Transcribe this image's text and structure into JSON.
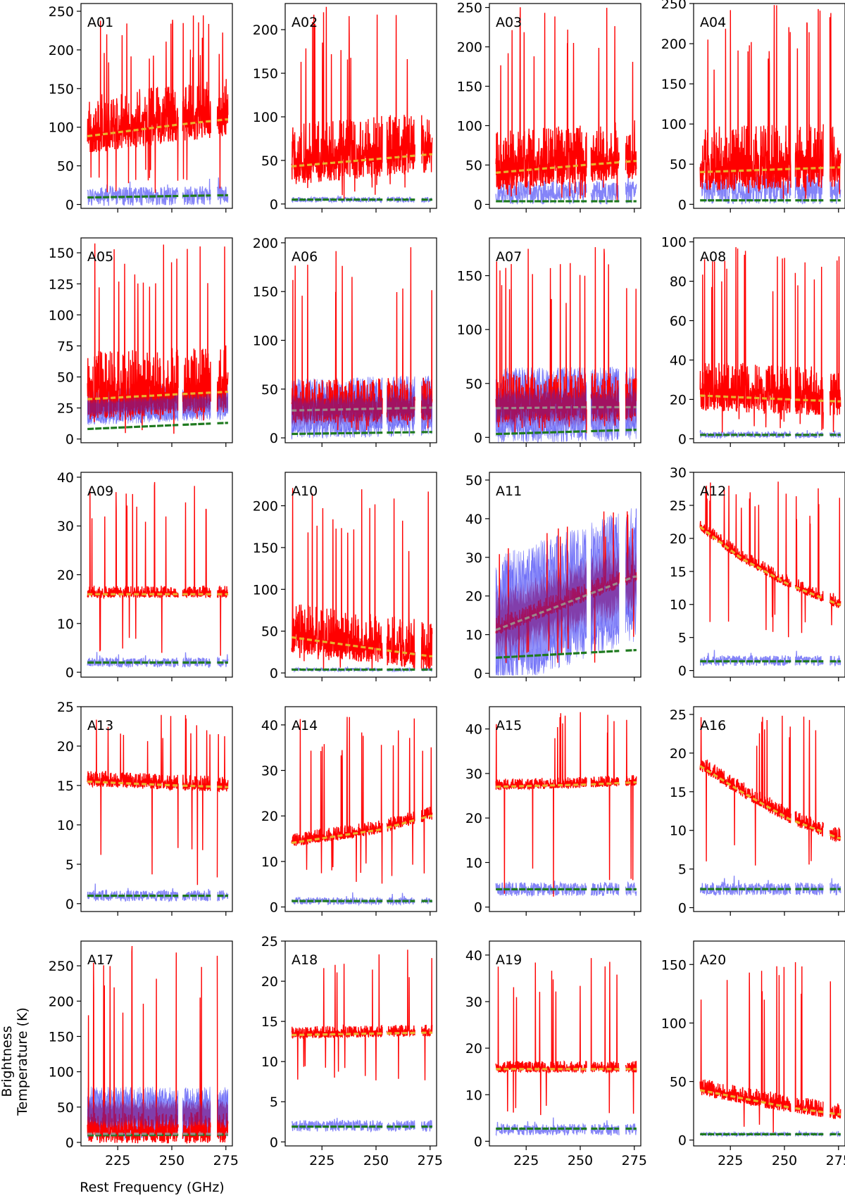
{
  "figure": {
    "ylabel_line1": "Brightness",
    "ylabel_line2": "Temperature (K)",
    "xlabel": "Rest Frequency (GHz)"
  },
  "colors": {
    "observed": "#ff0000",
    "observed_secondary": "#6f6ff7",
    "model_primary": "#e9b22e",
    "model_secondary": "#1f7a1f",
    "overlap": "#7a1a8a",
    "model_grey": "#9a8a8a"
  },
  "chart_data": [
    {
      "type": "line",
      "panel": "A01",
      "xlim": [
        208,
        278
      ],
      "ylim": [
        -5,
        260
      ],
      "xticks": [
        225,
        250,
        275
      ],
      "yticks": [
        0,
        50,
        100,
        150,
        200,
        250
      ],
      "base": [
        [
          210,
          88
        ],
        [
          252,
          103
        ],
        [
          275,
          110
        ]
      ],
      "noise": 75,
      "peak": 245,
      "floor": 10,
      "sec": [
        [
          210,
          10
        ],
        [
          275,
          12
        ]
      ],
      "secNoise": 12,
      "grn": [
        [
          210,
          9
        ],
        [
          275,
          12
        ]
      ],
      "dashGrey": false,
      "secFill": false
    },
    {
      "type": "line",
      "panel": "A02",
      "xlim": [
        208,
        278
      ],
      "ylim": [
        -5,
        230
      ],
      "xticks": [
        225,
        250,
        275
      ],
      "yticks": [
        0,
        50,
        100,
        150,
        200
      ],
      "base": [
        [
          210,
          43
        ],
        [
          252,
          52
        ],
        [
          275,
          57
        ]
      ],
      "noise": 70,
      "peak": 228,
      "floor": 5,
      "sec": [
        [
          210,
          5
        ],
        [
          275,
          5
        ]
      ],
      "secNoise": 3,
      "grn": [
        [
          210,
          5
        ],
        [
          275,
          5
        ]
      ],
      "dashGrey": false,
      "secFill": false
    },
    {
      "type": "line",
      "panel": "A03",
      "xlim": [
        208,
        278
      ],
      "ylim": [
        -5,
        255
      ],
      "xticks": [
        225,
        250,
        275
      ],
      "yticks": [
        0,
        50,
        100,
        150,
        200,
        250
      ],
      "base": [
        [
          210,
          40
        ],
        [
          252,
          50
        ],
        [
          275,
          55
        ]
      ],
      "noise": 75,
      "peak": 255,
      "floor": 3,
      "sec": [
        [
          210,
          15
        ],
        [
          275,
          15
        ]
      ],
      "secNoise": 15,
      "grn": [
        [
          210,
          4
        ],
        [
          275,
          4
        ]
      ],
      "dashGrey": false,
      "secFill": false
    },
    {
      "type": "line",
      "panel": "A04",
      "xlim": [
        208,
        278
      ],
      "ylim": [
        -5,
        250
      ],
      "xticks": [
        225,
        250,
        275
      ],
      "yticks": [
        0,
        50,
        100,
        150,
        200,
        250
      ],
      "base": [
        [
          210,
          40
        ],
        [
          252,
          44
        ],
        [
          275,
          46
        ]
      ],
      "noise": 80,
      "peak": 250,
      "floor": 5,
      "sec": [
        [
          210,
          20
        ],
        [
          275,
          20
        ]
      ],
      "secNoise": 20,
      "grn": [
        [
          210,
          5
        ],
        [
          275,
          5
        ]
      ],
      "dashGrey": false,
      "secFill": false
    },
    {
      "type": "line",
      "panel": "A05",
      "xlim": [
        208,
        278
      ],
      "ylim": [
        -3,
        162
      ],
      "xticks": [
        225,
        250,
        275
      ],
      "yticks": [
        0,
        25,
        50,
        75,
        100,
        125,
        150
      ],
      "base": [
        [
          210,
          32
        ],
        [
          252,
          36
        ],
        [
          275,
          38
        ]
      ],
      "noise": 55,
      "peak": 160,
      "floor": 4,
      "sec": [
        [
          210,
          25
        ],
        [
          275,
          30
        ]
      ],
      "secNoise": 12,
      "grn": [
        [
          210,
          8
        ],
        [
          275,
          13
        ]
      ],
      "dashGrey": false,
      "secFill": true
    },
    {
      "type": "line",
      "panel": "A06",
      "xlim": [
        208,
        278
      ],
      "ylim": [
        -5,
        205
      ],
      "xticks": [
        225,
        250,
        275
      ],
      "yticks": [
        0,
        50,
        100,
        150,
        200
      ],
      "base": [
        [
          210,
          28
        ],
        [
          252,
          30
        ],
        [
          275,
          31
        ]
      ],
      "noise": 45,
      "peak": 200,
      "floor": 3,
      "sec": [
        [
          210,
          28
        ],
        [
          275,
          32
        ]
      ],
      "secNoise": 25,
      "grn": [
        [
          210,
          4
        ],
        [
          275,
          6
        ]
      ],
      "dashGrey": true,
      "secFill": true
    },
    {
      "type": "line",
      "panel": "A07",
      "xlim": [
        208,
        278
      ],
      "ylim": [
        -5,
        185
      ],
      "xticks": [
        225,
        250,
        275
      ],
      "yticks": [
        0,
        50,
        100,
        150
      ],
      "base": [
        [
          210,
          27
        ],
        [
          252,
          28
        ],
        [
          275,
          28
        ]
      ],
      "noise": 45,
      "peak": 180,
      "floor": 2,
      "sec": [
        [
          210,
          28
        ],
        [
          275,
          30
        ]
      ],
      "secNoise": 28,
      "grn": [
        [
          210,
          3
        ],
        [
          275,
          7
        ]
      ],
      "dashGrey": true,
      "secFill": true
    },
    {
      "type": "line",
      "panel": "A08",
      "xlim": [
        208,
        278
      ],
      "ylim": [
        -2,
        102
      ],
      "xticks": [
        225,
        250,
        275
      ],
      "yticks": [
        0,
        20,
        40,
        60,
        80,
        100
      ],
      "base": [
        [
          210,
          22
        ],
        [
          252,
          20
        ],
        [
          275,
          19
        ]
      ],
      "noise": 25,
      "peak": 100,
      "floor": 3,
      "sec": [
        [
          210,
          2
        ],
        [
          275,
          2
        ]
      ],
      "secNoise": 1.5,
      "grn": [
        [
          210,
          2
        ],
        [
          275,
          2
        ]
      ],
      "dashGrey": false,
      "secFill": false
    },
    {
      "type": "line",
      "panel": "A09",
      "xlim": [
        208,
        278
      ],
      "ylim": [
        -1,
        41
      ],
      "xticks": [
        225,
        250,
        275
      ],
      "yticks": [
        0,
        10,
        20,
        30,
        40
      ],
      "base": [
        [
          210,
          16
        ],
        [
          252,
          16
        ],
        [
          275,
          16
        ]
      ],
      "noise": 2.5,
      "peak": 39,
      "floor": 3,
      "sec": [
        [
          210,
          2
        ],
        [
          275,
          2
        ]
      ],
      "secNoise": 1,
      "grn": [
        [
          210,
          2
        ],
        [
          275,
          2
        ]
      ],
      "dashGrey": false,
      "secFill": false
    },
    {
      "type": "line",
      "panel": "A10",
      "xlim": [
        208,
        278
      ],
      "ylim": [
        -5,
        240
      ],
      "xticks": [
        225,
        250,
        275
      ],
      "yticks": [
        0,
        50,
        100,
        150,
        200
      ],
      "base": [
        [
          210,
          43
        ],
        [
          252,
          28
        ],
        [
          275,
          20
        ]
      ],
      "noise": 60,
      "peak": 225,
      "floor": 3,
      "sec": [
        [
          210,
          4
        ],
        [
          275,
          4
        ]
      ],
      "secNoise": 2,
      "grn": [
        [
          210,
          4
        ],
        [
          275,
          4
        ]
      ],
      "dashGrey": false,
      "secFill": false
    },
    {
      "type": "line",
      "panel": "A11",
      "xlim": [
        208,
        278
      ],
      "ylim": [
        -1,
        52
      ],
      "xticks": [
        225,
        250,
        275
      ],
      "yticks": [
        0,
        10,
        20,
        30,
        40,
        50
      ],
      "base": [
        [
          210,
          11
        ],
        [
          252,
          20
        ],
        [
          275,
          25
        ]
      ],
      "noise": 5,
      "peak": 42,
      "floor": 0,
      "sec": [
        [
          210,
          12
        ],
        [
          275,
          25
        ]
      ],
      "secNoise": 14,
      "grn": [
        [
          210,
          4
        ],
        [
          275,
          6
        ]
      ],
      "dashGrey": true,
      "secFill": true
    },
    {
      "type": "line",
      "panel": "A12",
      "xlim": [
        208,
        278
      ],
      "ylim": [
        -1,
        30
      ],
      "xticks": [
        225,
        250,
        275
      ],
      "yticks": [
        0,
        5,
        10,
        15,
        20,
        25,
        30
      ],
      "base": [
        [
          210,
          22
        ],
        [
          230,
          17
        ],
        [
          252,
          13
        ],
        [
          275,
          10
        ]
      ],
      "noise": 2,
      "peak": 29,
      "floor": 5,
      "sec": [
        [
          210,
          1.5
        ],
        [
          275,
          1.5
        ]
      ],
      "secNoise": 0.8,
      "grn": [
        [
          210,
          1.4
        ],
        [
          275,
          1.4
        ]
      ],
      "dashGrey": false,
      "secFill": false
    },
    {
      "type": "line",
      "panel": "A13",
      "xlim": [
        208,
        278
      ],
      "ylim": [
        -1,
        25
      ],
      "xticks": [
        225,
        250,
        275
      ],
      "yticks": [
        0,
        5,
        10,
        15,
        20,
        25
      ],
      "base": [
        [
          210,
          15.5
        ],
        [
          252,
          15
        ],
        [
          275,
          14.8
        ]
      ],
      "noise": 2,
      "peak": 24,
      "floor": 2,
      "sec": [
        [
          210,
          1
        ],
        [
          275,
          1
        ]
      ],
      "secNoise": 0.7,
      "grn": [
        [
          210,
          1
        ],
        [
          275,
          1
        ]
      ],
      "dashGrey": false,
      "secFill": false
    },
    {
      "type": "line",
      "panel": "A14",
      "xlim": [
        208,
        278
      ],
      "ylim": [
        -1,
        44
      ],
      "xticks": [
        225,
        250,
        275
      ],
      "yticks": [
        0,
        10,
        20,
        30,
        40
      ],
      "base": [
        [
          210,
          14
        ],
        [
          252,
          17
        ],
        [
          275,
          20
        ]
      ],
      "noise": 3,
      "peak": 42,
      "floor": 5,
      "sec": [
        [
          210,
          1.3
        ],
        [
          275,
          1.3
        ]
      ],
      "secNoise": 0.8,
      "grn": [
        [
          210,
          1.3
        ],
        [
          275,
          1.3
        ]
      ],
      "dashGrey": false,
      "secFill": false
    },
    {
      "type": "line",
      "panel": "A15",
      "xlim": [
        208,
        278
      ],
      "ylim": [
        -1,
        45
      ],
      "xticks": [
        225,
        250,
        275
      ],
      "yticks": [
        0,
        10,
        20,
        30,
        40
      ],
      "base": [
        [
          210,
          27
        ],
        [
          252,
          27.5
        ],
        [
          275,
          28
        ]
      ],
      "noise": 2.5,
      "peak": 44,
      "floor": 1,
      "sec": [
        [
          210,
          4
        ],
        [
          275,
          4
        ]
      ],
      "secNoise": 1.5,
      "grn": [
        [
          210,
          4
        ],
        [
          275,
          4
        ]
      ],
      "dashGrey": false,
      "secFill": false
    },
    {
      "type": "line",
      "panel": "A16",
      "xlim": [
        208,
        278
      ],
      "ylim": [
        -0.5,
        26
      ],
      "xticks": [
        225,
        250,
        275
      ],
      "yticks": [
        0,
        5,
        10,
        15,
        20,
        25
      ],
      "base": [
        [
          210,
          18.5
        ],
        [
          230,
          15
        ],
        [
          252,
          11.5
        ],
        [
          275,
          9
        ]
      ],
      "noise": 2,
      "peak": 25,
      "floor": 5,
      "sec": [
        [
          210,
          2.4
        ],
        [
          275,
          2.4
        ]
      ],
      "secNoise": 0.8,
      "grn": [
        [
          210,
          2.4
        ],
        [
          275,
          2.4
        ]
      ],
      "dashGrey": false,
      "secFill": false
    },
    {
      "type": "line",
      "panel": "A17",
      "xlim": [
        208,
        278
      ],
      "ylim": [
        -5,
        285
      ],
      "xticks": [
        225,
        250,
        275
      ],
      "yticks": [
        0,
        50,
        100,
        150,
        200,
        250
      ],
      "base": [
        [
          210,
          12
        ],
        [
          252,
          12
        ],
        [
          275,
          12
        ]
      ],
      "noise": 45,
      "peak": 278,
      "floor": 3,
      "sec": [
        [
          210,
          40
        ],
        [
          275,
          40
        ]
      ],
      "secNoise": 30,
      "grn": [
        [
          210,
          10
        ],
        [
          275,
          11
        ]
      ],
      "dashGrey": true,
      "secFill": true
    },
    {
      "type": "line",
      "panel": "A18",
      "xlim": [
        208,
        278
      ],
      "ylim": [
        -0.5,
        25
      ],
      "xticks": [
        225,
        250,
        275
      ],
      "yticks": [
        0,
        5,
        10,
        15,
        20,
        25
      ],
      "base": [
        [
          210,
          13.3
        ],
        [
          252,
          13.5
        ],
        [
          275,
          13.6
        ]
      ],
      "noise": 1.5,
      "peak": 24,
      "floor": 7,
      "sec": [
        [
          210,
          2
        ],
        [
          275,
          2
        ]
      ],
      "secNoise": 0.7,
      "grn": [
        [
          210,
          1.9
        ],
        [
          275,
          1.9
        ]
      ],
      "dashGrey": false,
      "secFill": false
    },
    {
      "type": "line",
      "panel": "A19",
      "xlim": [
        208,
        278
      ],
      "ylim": [
        -1,
        43
      ],
      "xticks": [
        225,
        250,
        275
      ],
      "yticks": [
        0,
        10,
        20,
        30,
        40
      ],
      "base": [
        [
          210,
          15.5
        ],
        [
          252,
          15.5
        ],
        [
          275,
          15.5
        ]
      ],
      "noise": 2.5,
      "peak": 41,
      "floor": 4,
      "sec": [
        [
          210,
          2.5
        ],
        [
          275,
          2.5
        ]
      ],
      "secNoise": 1.2,
      "grn": [
        [
          210,
          2.7
        ],
        [
          275,
          2.7
        ]
      ],
      "dashGrey": false,
      "secFill": false
    },
    {
      "type": "line",
      "panel": "A20",
      "xlim": [
        208,
        278
      ],
      "ylim": [
        -5,
        170
      ],
      "xticks": [
        225,
        250,
        275
      ],
      "yticks": [
        0,
        50,
        100,
        150
      ],
      "base": [
        [
          210,
          43
        ],
        [
          252,
          28
        ],
        [
          275,
          22
        ]
      ],
      "noise": 15,
      "peak": 163,
      "floor": 5,
      "sec": [
        [
          210,
          5
        ],
        [
          275,
          5
        ]
      ],
      "secNoise": 1.5,
      "grn": [
        [
          210,
          5
        ],
        [
          275,
          5
        ]
      ],
      "dashGrey": false,
      "secFill": false
    }
  ]
}
